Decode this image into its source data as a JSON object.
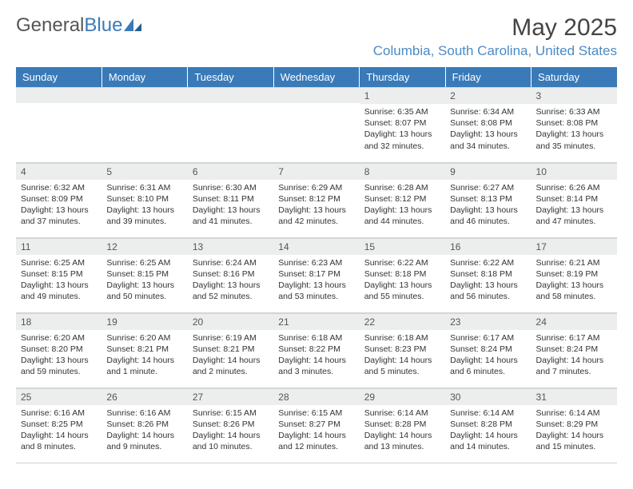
{
  "brand": {
    "name_a": "General",
    "name_b": "Blue"
  },
  "title": "May 2025",
  "location": "Columbia, South Carolina, United States",
  "colors": {
    "header_bg": "#3a7ab8",
    "header_fg": "#ffffff",
    "daynum_bg": "#eceded",
    "location_fg": "#4b8bc5"
  },
  "calendar": {
    "days_of_week": [
      "Sunday",
      "Monday",
      "Tuesday",
      "Wednesday",
      "Thursday",
      "Friday",
      "Saturday"
    ],
    "weeks": [
      [
        null,
        null,
        null,
        null,
        {
          "n": "1",
          "sunrise": "6:35 AM",
          "sunset": "8:07 PM",
          "daylight": "13 hours and 32 minutes."
        },
        {
          "n": "2",
          "sunrise": "6:34 AM",
          "sunset": "8:08 PM",
          "daylight": "13 hours and 34 minutes."
        },
        {
          "n": "3",
          "sunrise": "6:33 AM",
          "sunset": "8:08 PM",
          "daylight": "13 hours and 35 minutes."
        }
      ],
      [
        {
          "n": "4",
          "sunrise": "6:32 AM",
          "sunset": "8:09 PM",
          "daylight": "13 hours and 37 minutes."
        },
        {
          "n": "5",
          "sunrise": "6:31 AM",
          "sunset": "8:10 PM",
          "daylight": "13 hours and 39 minutes."
        },
        {
          "n": "6",
          "sunrise": "6:30 AM",
          "sunset": "8:11 PM",
          "daylight": "13 hours and 41 minutes."
        },
        {
          "n": "7",
          "sunrise": "6:29 AM",
          "sunset": "8:12 PM",
          "daylight": "13 hours and 42 minutes."
        },
        {
          "n": "8",
          "sunrise": "6:28 AM",
          "sunset": "8:12 PM",
          "daylight": "13 hours and 44 minutes."
        },
        {
          "n": "9",
          "sunrise": "6:27 AM",
          "sunset": "8:13 PM",
          "daylight": "13 hours and 46 minutes."
        },
        {
          "n": "10",
          "sunrise": "6:26 AM",
          "sunset": "8:14 PM",
          "daylight": "13 hours and 47 minutes."
        }
      ],
      [
        {
          "n": "11",
          "sunrise": "6:25 AM",
          "sunset": "8:15 PM",
          "daylight": "13 hours and 49 minutes."
        },
        {
          "n": "12",
          "sunrise": "6:25 AM",
          "sunset": "8:15 PM",
          "daylight": "13 hours and 50 minutes."
        },
        {
          "n": "13",
          "sunrise": "6:24 AM",
          "sunset": "8:16 PM",
          "daylight": "13 hours and 52 minutes."
        },
        {
          "n": "14",
          "sunrise": "6:23 AM",
          "sunset": "8:17 PM",
          "daylight": "13 hours and 53 minutes."
        },
        {
          "n": "15",
          "sunrise": "6:22 AM",
          "sunset": "8:18 PM",
          "daylight": "13 hours and 55 minutes."
        },
        {
          "n": "16",
          "sunrise": "6:22 AM",
          "sunset": "8:18 PM",
          "daylight": "13 hours and 56 minutes."
        },
        {
          "n": "17",
          "sunrise": "6:21 AM",
          "sunset": "8:19 PM",
          "daylight": "13 hours and 58 minutes."
        }
      ],
      [
        {
          "n": "18",
          "sunrise": "6:20 AM",
          "sunset": "8:20 PM",
          "daylight": "13 hours and 59 minutes."
        },
        {
          "n": "19",
          "sunrise": "6:20 AM",
          "sunset": "8:21 PM",
          "daylight": "14 hours and 1 minute."
        },
        {
          "n": "20",
          "sunrise": "6:19 AM",
          "sunset": "8:21 PM",
          "daylight": "14 hours and 2 minutes."
        },
        {
          "n": "21",
          "sunrise": "6:18 AM",
          "sunset": "8:22 PM",
          "daylight": "14 hours and 3 minutes."
        },
        {
          "n": "22",
          "sunrise": "6:18 AM",
          "sunset": "8:23 PM",
          "daylight": "14 hours and 5 minutes."
        },
        {
          "n": "23",
          "sunrise": "6:17 AM",
          "sunset": "8:24 PM",
          "daylight": "14 hours and 6 minutes."
        },
        {
          "n": "24",
          "sunrise": "6:17 AM",
          "sunset": "8:24 PM",
          "daylight": "14 hours and 7 minutes."
        }
      ],
      [
        {
          "n": "25",
          "sunrise": "6:16 AM",
          "sunset": "8:25 PM",
          "daylight": "14 hours and 8 minutes."
        },
        {
          "n": "26",
          "sunrise": "6:16 AM",
          "sunset": "8:26 PM",
          "daylight": "14 hours and 9 minutes."
        },
        {
          "n": "27",
          "sunrise": "6:15 AM",
          "sunset": "8:26 PM",
          "daylight": "14 hours and 10 minutes."
        },
        {
          "n": "28",
          "sunrise": "6:15 AM",
          "sunset": "8:27 PM",
          "daylight": "14 hours and 12 minutes."
        },
        {
          "n": "29",
          "sunrise": "6:14 AM",
          "sunset": "8:28 PM",
          "daylight": "14 hours and 13 minutes."
        },
        {
          "n": "30",
          "sunrise": "6:14 AM",
          "sunset": "8:28 PM",
          "daylight": "14 hours and 14 minutes."
        },
        {
          "n": "31",
          "sunrise": "6:14 AM",
          "sunset": "8:29 PM",
          "daylight": "14 hours and 15 minutes."
        }
      ]
    ],
    "labels": {
      "sunrise": "Sunrise:",
      "sunset": "Sunset:",
      "daylight": "Daylight:"
    }
  }
}
